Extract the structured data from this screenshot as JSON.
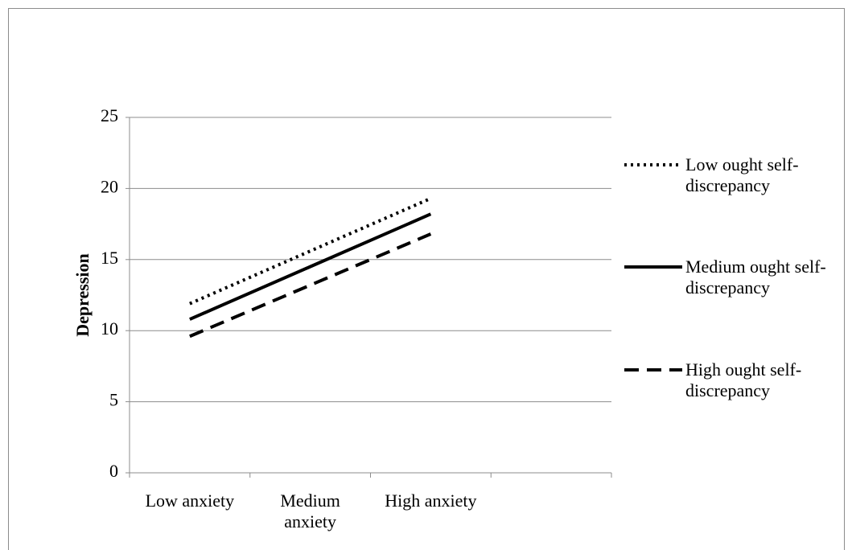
{
  "chart_data": {
    "type": "line",
    "y_label": "Depression",
    "categories": [
      "Low anxiety",
      "Medium anxiety",
      "High anxiety",
      null
    ],
    "series": [
      {
        "name": "Low ought self-discrepancy",
        "color": "#000000",
        "style": "dotted",
        "values": [
          11.9,
          15.6,
          19.3,
          null
        ]
      },
      {
        "name": "Medium ought self-discrepancy",
        "color": "#000000",
        "style": "solid",
        "values": [
          10.8,
          14.5,
          18.2,
          null
        ]
      },
      {
        "name": "High ought self-discrepancy",
        "color": "#000000",
        "style": "dashed",
        "values": [
          9.6,
          13.2,
          16.8,
          null
        ]
      }
    ],
    "ylim": [
      0,
      25
    ],
    "yticks": [
      0,
      5,
      10,
      15,
      20,
      25
    ],
    "grid": true,
    "legend": "right"
  }
}
